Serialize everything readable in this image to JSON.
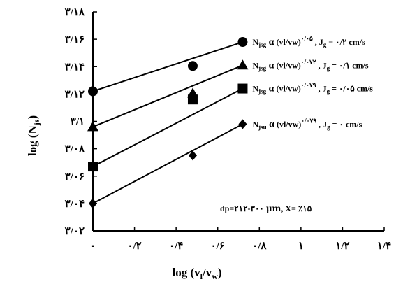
{
  "chart_data": {
    "type": "scatter",
    "xlabel": "log (v₁/vᵥᵥ)",
    "xlabel_parts": {
      "pre": "log (v",
      "sub1": "l",
      "mid": "/v",
      "sub2": "w",
      "post": ")"
    },
    "ylabel_parts": {
      "pre": "log (N",
      "sub": "js",
      "post": ")"
    },
    "xlim": [
      0,
      1.4
    ],
    "ylim": [
      3.02,
      3.18
    ],
    "x_ticks": [
      {
        "value": 0,
        "label": "٠"
      },
      {
        "value": 0.2,
        "label": "٠/۲"
      },
      {
        "value": 0.4,
        "label": "٠/۴"
      },
      {
        "value": 0.6,
        "label": "٠/۶"
      },
      {
        "value": 0.8,
        "label": "٠/۸"
      },
      {
        "value": 1.0,
        "label": "۱"
      },
      {
        "value": 1.2,
        "label": "۱/۲"
      },
      {
        "value": 1.4,
        "label": "۱/۴"
      }
    ],
    "y_ticks": [
      {
        "value": 3.02,
        "label": "۳/٠۲"
      },
      {
        "value": 3.04,
        "label": "۳/٠۴"
      },
      {
        "value": 3.06,
        "label": "۳/٠۶"
      },
      {
        "value": 3.08,
        "label": "۳/٠۸"
      },
      {
        "value": 3.1,
        "label": "۳/۱"
      },
      {
        "value": 3.12,
        "label": "۳/۱۲"
      },
      {
        "value": 3.14,
        "label": "۳/۱۴"
      },
      {
        "value": 3.16,
        "label": "۳/۱۶"
      },
      {
        "value": 3.18,
        "label": "۳/۱۸"
      }
    ],
    "series": [
      {
        "marker": "circle",
        "x": [
          0,
          0.48,
          0.72
        ],
        "y": [
          3.122,
          3.1405,
          3.158
        ],
        "fit": [
          [
            0,
            3.122
          ],
          [
            0.72,
            3.158
          ]
        ],
        "annotation": {
          "N": "N",
          "Nsub": "jsg",
          "alpha": "α",
          "mid": " (vl/vw)",
          "exp": "٠/٠۵",
          "mid2": " , J",
          "Jsub": "g",
          "tail": " = ٠/۲ cm/s"
        }
      },
      {
        "marker": "triangle",
        "x": [
          0,
          0.48,
          0.72
        ],
        "y": [
          3.096,
          3.1205,
          3.141
        ],
        "fit": [
          [
            0,
            3.096
          ],
          [
            0.72,
            3.141
          ]
        ],
        "annotation": {
          "N": "N",
          "Nsub": "jsg",
          "alpha": "α",
          "mid": " (vl/vw)",
          "exp": "٠/٠۷۲",
          "mid2": " , J",
          "Jsub": "g",
          "tail": " = ٠/۱ cm/s"
        }
      },
      {
        "marker": "square",
        "x": [
          0,
          0.48,
          0.72
        ],
        "y": [
          3.067,
          3.116,
          3.124
        ],
        "fit": [
          [
            0,
            3.067
          ],
          [
            0.72,
            3.124
          ]
        ],
        "annotation": {
          "N": "N",
          "Nsub": "jsg",
          "alpha": "α",
          "mid": " (vl/vw)",
          "exp": "٠/٠۷۹",
          "mid2": " , J",
          "Jsub": "g",
          "tail": " = ٠/٠۵ cm/s"
        }
      },
      {
        "marker": "diamond",
        "x": [
          0,
          0.48,
          0.72
        ],
        "y": [
          3.04,
          3.075,
          3.098
        ],
        "fit": [
          [
            0,
            3.04
          ],
          [
            0.72,
            3.098
          ]
        ],
        "annotation": {
          "N": "N",
          "Nsub": "jsu",
          "alpha": "α",
          "mid": " (vl/vw)",
          "exp": "٠/٠۷۹",
          "mid2": " , J",
          "Jsub": "g",
          "tail": " = ٠ cm/s"
        }
      }
    ],
    "note": {
      "pre": "dp=۲۱۲-۳٠٠ ",
      "mu": "μm",
      "post": ", X= ٪۱۵"
    },
    "grid": false,
    "legend": "none"
  }
}
